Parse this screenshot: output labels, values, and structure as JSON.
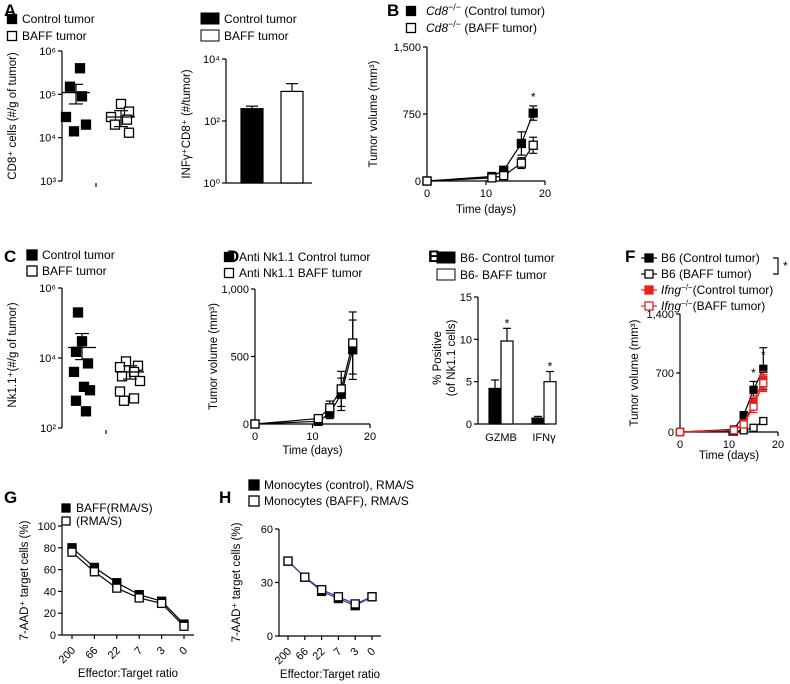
{
  "colors": {
    "red": "#e8201d",
    "black": "#000000",
    "white": "#ffffff",
    "blue": "#2b3fa8"
  },
  "panels": {
    "A": "A",
    "B": "B",
    "C": "C",
    "D": "D",
    "E": "E",
    "F": "F",
    "G": "G",
    "H": "H"
  },
  "chart_data": [
    {
      "id": "A1",
      "type": "scatter",
      "scale": "log",
      "ylabel": "CD8⁺ cells (#/g of tumor)",
      "yticks": [
        "10⁶",
        "10⁵",
        "10⁴",
        "10³"
      ],
      "ylim": [
        1000,
        1000000
      ],
      "legend": [
        "Control tumor",
        "BAFF tumor"
      ],
      "groups": [
        {
          "name": "Control tumor",
          "marker": "filled-square",
          "mean": 110000,
          "sem_low": 60000,
          "sem_high": 170000,
          "values": [
            400000,
            150000,
            90000,
            30000,
            20000,
            14000
          ]
        },
        {
          "name": "BAFF tumor",
          "marker": "open-square",
          "mean": 30000,
          "sem_low": 18000,
          "sem_high": 42000,
          "values": [
            60000,
            40000,
            30000,
            26000,
            20000,
            13000
          ]
        }
      ]
    },
    {
      "id": "A2",
      "type": "bar",
      "scale": "log",
      "ylabel": "INFγ⁺CD8⁺ (#/tumor)",
      "yticks": [
        "10⁴",
        "10²",
        "10⁰"
      ],
      "ylim": [
        1,
        10000
      ],
      "legend": [
        "Control tumor",
        "BAFF tumor"
      ],
      "categories": [
        "Control tumor",
        "BAFF tumor"
      ],
      "values": [
        250,
        900
      ],
      "errors": [
        300,
        1600
      ],
      "fills": [
        "#000000",
        "#ffffff"
      ]
    },
    {
      "id": "B",
      "type": "line",
      "ylabel": "Tumor volume (mm³)",
      "xlabel": "Time (days)",
      "yticks": [
        "1,500",
        "750",
        "0"
      ],
      "xticks": [
        "0",
        "10",
        "20"
      ],
      "ylim": [
        0,
        1500
      ],
      "xlim": [
        0,
        20
      ],
      "legend_prefix": "Cd8",
      "legend_sup": "−/−",
      "legend": [
        "(Control tumor)",
        "(BAFF tumor)"
      ],
      "star_label": "*",
      "star_x": 18,
      "series": [
        {
          "name": "Cd8−/− (Control tumor)",
          "marker": "filled-square",
          "x": [
            0,
            11,
            13,
            16,
            18
          ],
          "values": [
            0,
            50,
            120,
            420,
            760
          ],
          "err": [
            0,
            15,
            25,
            130,
            80
          ]
        },
        {
          "name": "Cd8−/− (BAFF tumor)",
          "marker": "open-square",
          "x": [
            0,
            11,
            13,
            16,
            18
          ],
          "values": [
            0,
            35,
            60,
            200,
            400
          ],
          "err": [
            0,
            10,
            20,
            60,
            90
          ]
        }
      ]
    },
    {
      "id": "C",
      "type": "scatter",
      "scale": "log",
      "ylabel": "Nk1.1⁺(#/g of tumor)",
      "yticks": [
        "10⁶",
        "10⁴",
        "10²"
      ],
      "ylim": [
        100,
        1000000
      ],
      "legend": [
        "Control tumor",
        "BAFF tumor"
      ],
      "groups": [
        {
          "name": "Control tumor",
          "marker": "filled-square",
          "mean": 20000,
          "sem_low": 9000,
          "sem_high": 50000,
          "values": [
            200000,
            30000,
            15000,
            7000,
            4000,
            1500,
            1200,
            600,
            300
          ]
        },
        {
          "name": "BAFF tumor",
          "marker": "open-square",
          "mean": 4000,
          "sem_low": 2500,
          "sem_high": 6000,
          "values": [
            8000,
            6000,
            5500,
            4000,
            3000,
            2200,
            1100,
            700,
            600
          ]
        }
      ]
    },
    {
      "id": "D",
      "type": "line",
      "ylabel": "Tumor volume (mm³)",
      "xlabel": "Time (days)",
      "yticks": [
        "1,000",
        "500",
        "0"
      ],
      "xticks": [
        "0",
        "10",
        "20"
      ],
      "ylim": [
        0,
        1000
      ],
      "xlim": [
        0,
        20
      ],
      "legend": [
        "Anti Nk1.1 Control tumor",
        "Anti Nk1.1 BAFF tumor"
      ],
      "series": [
        {
          "name": "Anti Nk1.1 Control tumor",
          "marker": "filled-square",
          "x": [
            0,
            11,
            13,
            15,
            17
          ],
          "values": [
            0,
            20,
            80,
            220,
            550
          ],
          "err": [
            0,
            15,
            40,
            120,
            220
          ]
        },
        {
          "name": "Anti Nk1.1 BAFF tumor",
          "marker": "open-square",
          "x": [
            0,
            11,
            13,
            15,
            17
          ],
          "values": [
            0,
            40,
            120,
            260,
            600
          ],
          "err": [
            0,
            20,
            50,
            130,
            230
          ]
        }
      ]
    },
    {
      "id": "E",
      "type": "bar",
      "ylabel_1": "% Positive",
      "ylabel_2": "(of Nk1.1 cells)",
      "yticks": [
        "15",
        "10",
        "5",
        "0"
      ],
      "ylim": [
        0,
        15
      ],
      "legend": [
        "B6- Control tumor",
        "B6- BAFF tumor"
      ],
      "categories": [
        "GZMB",
        "IFNγ"
      ],
      "star_label": "*",
      "series": [
        {
          "name": "B6- Control tumor",
          "fill": "#000000",
          "values": [
            4.2,
            0.7
          ],
          "err": [
            1.0,
            0.2
          ]
        },
        {
          "name": "B6- BAFF tumor",
          "fill": "#ffffff",
          "values": [
            9.8,
            5.0
          ],
          "err": [
            1.5,
            1.2
          ]
        }
      ]
    },
    {
      "id": "F",
      "type": "line",
      "ylabel": "Tumor volume (mm³)",
      "xlabel": "Time (days)",
      "yticks": [
        "1,400",
        "700",
        "0"
      ],
      "xticks": [
        "0",
        "10",
        "20"
      ],
      "ylim": [
        0,
        1400
      ],
      "xlim": [
        0,
        20
      ],
      "legend": [
        "B6 (Control tumor)",
        "B6 (BAFF tumor)",
        "(Control tumor)",
        "(BAFF tumor)"
      ],
      "legend_prefix": "Ifng",
      "legend_sup": "−/−",
      "star_label": "*",
      "series": [
        {
          "name": "B6 (Control tumor)",
          "marker": "filled-square",
          "color": "#000000",
          "x": [
            0,
            11,
            13,
            15,
            17
          ],
          "values": [
            0,
            30,
            200,
            500,
            750
          ],
          "err": [
            0,
            10,
            40,
            100,
            250
          ]
        },
        {
          "name": "B6 (BAFF tumor)",
          "marker": "open-square",
          "color": "#000000",
          "x": [
            0,
            11,
            13,
            15,
            17
          ],
          "values": [
            0,
            5,
            20,
            50,
            130
          ],
          "err": [
            0,
            5,
            8,
            20,
            40
          ]
        },
        {
          "name": "Ifng−/− (Control tumor)",
          "marker": "filled-square",
          "color": "#e8201d",
          "x": [
            0,
            11,
            13,
            15,
            17
          ],
          "values": [
            0,
            20,
            100,
            350,
            620
          ],
          "err": [
            0,
            10,
            30,
            80,
            100
          ]
        },
        {
          "name": "Ifng−/− (BAFF tumor)",
          "marker": "open-square",
          "color": "#e8201d",
          "x": [
            0,
            11,
            13,
            15,
            17
          ],
          "values": [
            0,
            20,
            90,
            300,
            580
          ],
          "err": [
            0,
            10,
            30,
            70,
            100
          ]
        }
      ]
    },
    {
      "id": "G",
      "type": "line",
      "ylabel": "7-AAD⁺ target cells (%)",
      "xlabel": "Effector:Target ratio",
      "yticks": [
        "100",
        "80",
        "60",
        "40",
        "20",
        "0"
      ],
      "ylim": [
        0,
        100
      ],
      "categories": [
        "200",
        "66",
        "22",
        "7",
        "3",
        "0"
      ],
      "legend": [
        "BAFF(RMA/S)",
        "(RMA/S)"
      ],
      "series": [
        {
          "name": "BAFF(RMA/S)",
          "marker": "filled-square",
          "values": [
            80,
            62,
            48,
            37,
            31,
            10
          ]
        },
        {
          "name": "(RMA/S)",
          "marker": "open-square",
          "values": [
            76,
            58,
            43,
            34,
            29,
            8
          ]
        }
      ]
    },
    {
      "id": "H",
      "type": "line",
      "ylabel": "7-AAD⁺ target cells (%)",
      "xlabel": "Effector:Target ratio",
      "yticks": [
        "60",
        "30",
        "0"
      ],
      "ylim": [
        0,
        60
      ],
      "categories": [
        "200",
        "66",
        "22",
        "7",
        "3",
        "0"
      ],
      "legend": [
        "Monocytes (control), RMA/S",
        "Monocytes (BAFF), RMA/S"
      ],
      "series": [
        {
          "name": "Monocytes (control), RMA/S",
          "marker": "filled-square",
          "values": [
            42,
            33,
            25,
            21,
            17,
            22
          ]
        },
        {
          "name": "Monocytes (BAFF), RMA/S",
          "marker": "open-square",
          "values": [
            42,
            33,
            26,
            22,
            18,
            22
          ]
        }
      ]
    }
  ]
}
